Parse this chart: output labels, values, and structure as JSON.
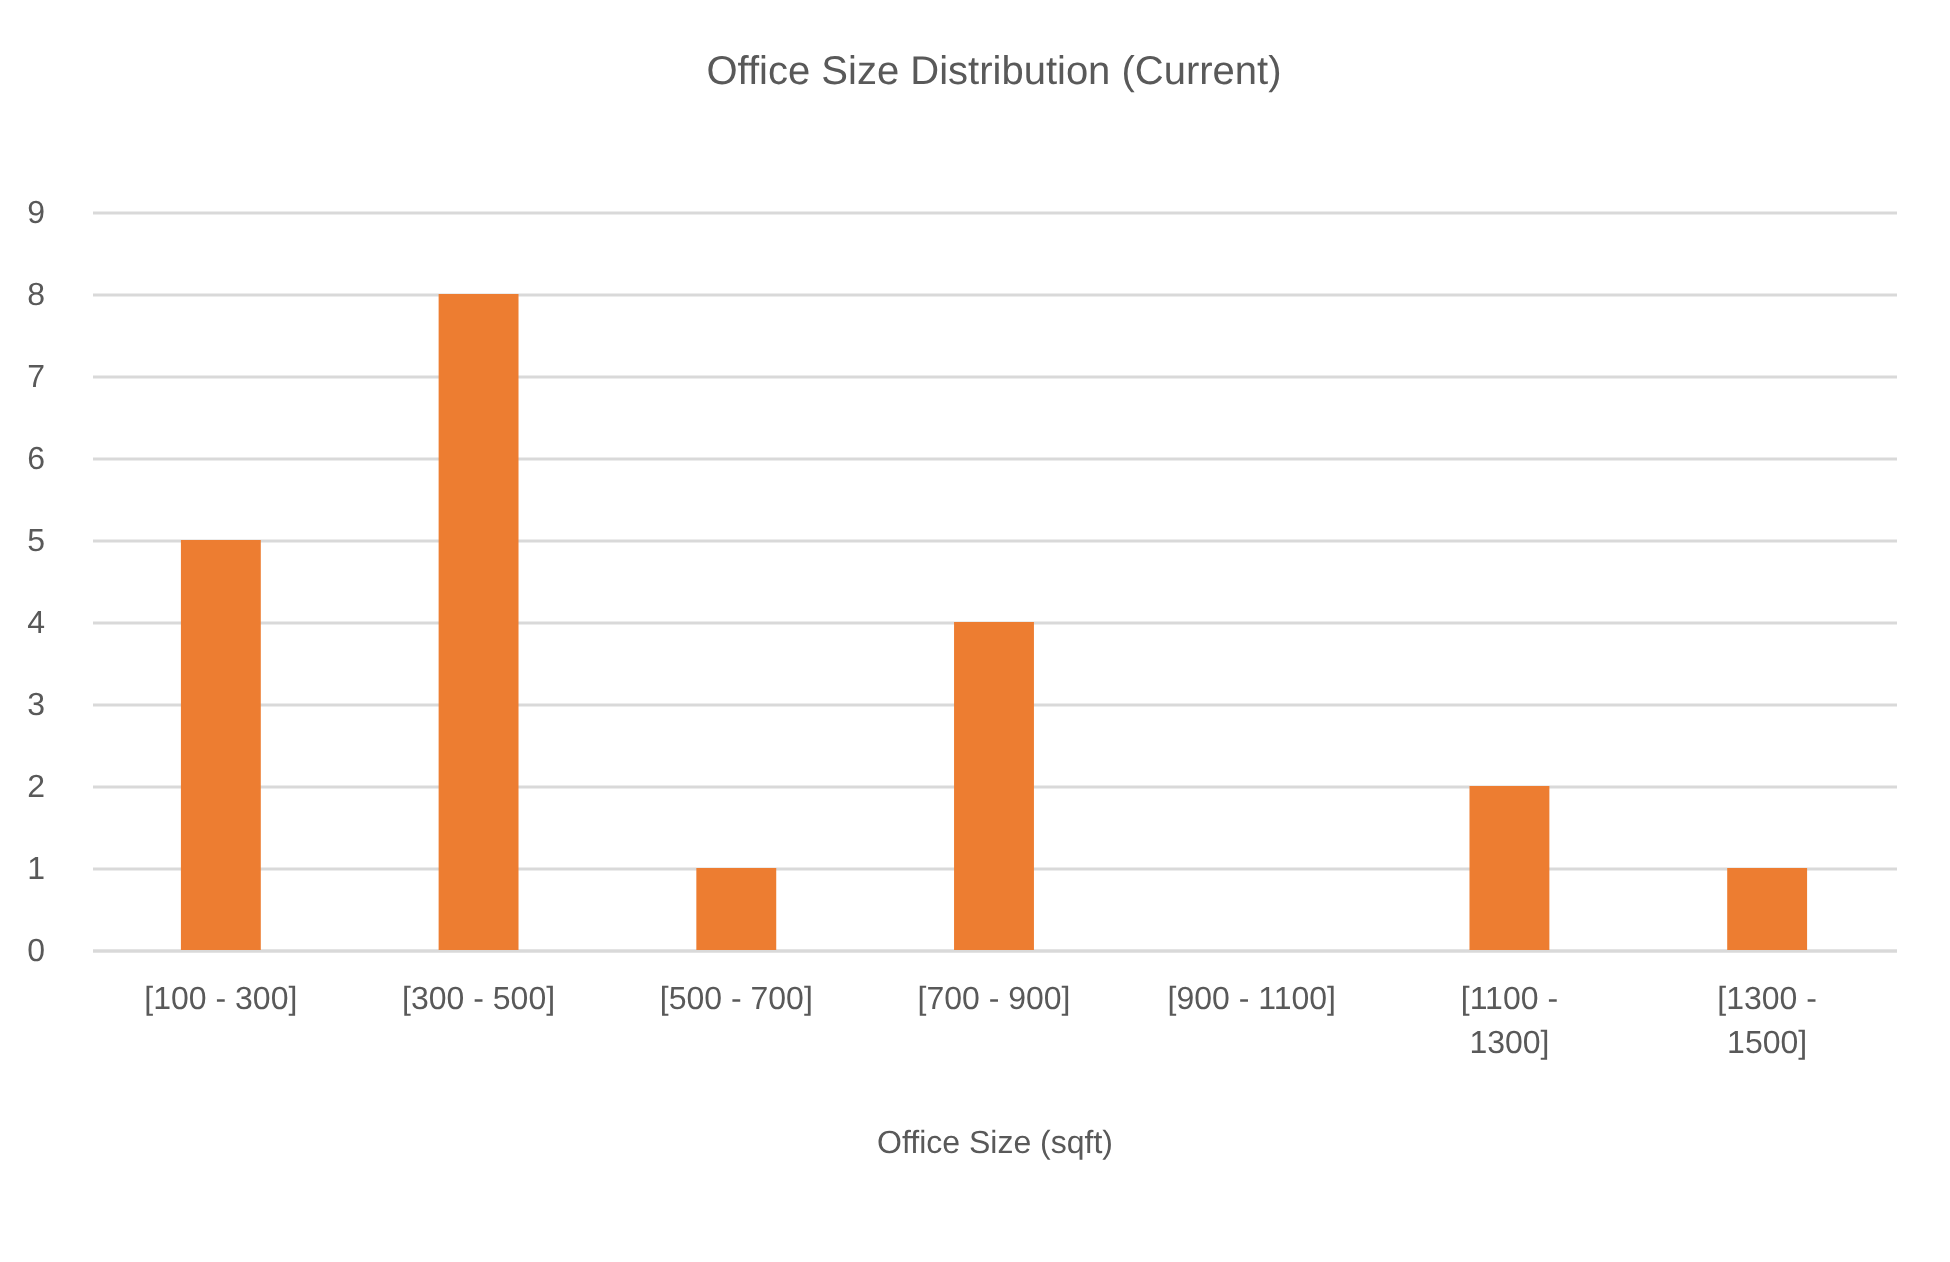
{
  "chart_data": {
    "type": "bar",
    "title": "Office Size Distribution (Current)",
    "xlabel": "Office Size (sqft)",
    "categories": [
      "[100 - 300]",
      "[300 - 500]",
      "[500 - 700]",
      "[700 - 900]",
      "[900 - 1100]",
      "[1100 - 1300]",
      "[1300 - 1500]"
    ],
    "values": [
      5,
      8,
      1,
      4,
      0,
      2,
      1
    ],
    "color": "#ed7d31",
    "ylim": [
      0,
      9
    ],
    "yticks": [
      0,
      1,
      2,
      3,
      4,
      5,
      6,
      7,
      8,
      9
    ],
    "grid": "y"
  }
}
